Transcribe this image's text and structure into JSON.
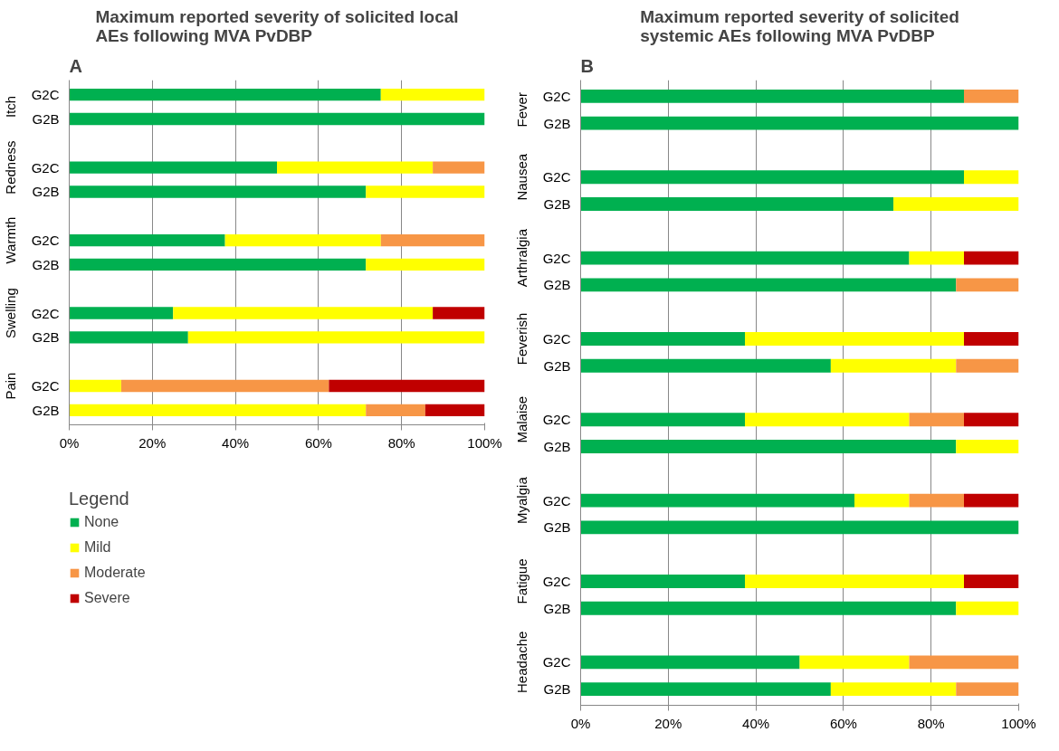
{
  "chart_data": [
    {
      "type": "bar",
      "orientation": "horizontal",
      "stacked": true,
      "title": "Maximum reported severity of solicited local AEs following MVA PvDBP",
      "annotations": [
        "A",
        "Itch",
        "Redness",
        "Warmth",
        "Swelling",
        "Pain"
      ],
      "categories": [
        "G2C",
        "G2B",
        null,
        "G2C",
        "G2B",
        null,
        "G2C",
        "G2B",
        null,
        "G2C",
        "G2B",
        null,
        "G2C",
        "G2B"
      ],
      "series": [
        {
          "name": "None",
          "color": "#00b050",
          "values": [
            75,
            100,
            null,
            50,
            71.4,
            null,
            37.5,
            71.4,
            null,
            25,
            28.6,
            null,
            0,
            0
          ]
        },
        {
          "name": "Mild",
          "color": "#ffff00",
          "values": [
            25,
            0,
            null,
            37.5,
            28.6,
            null,
            37.5,
            28.6,
            null,
            62.5,
            71.4,
            null,
            12.5,
            71.4
          ]
        },
        {
          "name": "Moderate",
          "color": "#f79646",
          "values": [
            0,
            0,
            null,
            12.5,
            0,
            null,
            25,
            0,
            null,
            0,
            0,
            null,
            50,
            14.3
          ]
        },
        {
          "name": "Severe",
          "color": "#c00000",
          "values": [
            0,
            0,
            null,
            0,
            0,
            null,
            0,
            0,
            null,
            12.5,
            0,
            null,
            37.5,
            14.3
          ]
        }
      ],
      "xlim": [
        0,
        100
      ],
      "xticks": [
        {
          "value": 0,
          "label": "0%"
        },
        {
          "value": 20,
          "label": "20%"
        },
        {
          "value": 40,
          "label": "40%"
        },
        {
          "value": 60,
          "label": "60%"
        },
        {
          "value": 80,
          "label": "80%"
        },
        {
          "value": 100,
          "label": "100%"
        }
      ],
      "grid": "x",
      "legend": "bottom",
      "legend_title": "Legend"
    },
    {
      "type": "bar",
      "orientation": "horizontal",
      "stacked": true,
      "title": "Maximum reported severity of solicited systemic AEs following MVA PvDBP",
      "annotations": [
        "B",
        "Fever",
        "Nausea",
        "Arthralgia",
        "Feverish",
        "Malaise",
        "Myalgia",
        "Fatigue",
        "Headache"
      ],
      "categories": [
        "G2C",
        "G2B",
        null,
        "G2C",
        "G2B",
        null,
        "G2C",
        "G2B",
        null,
        "G2C",
        "G2B",
        null,
        "G2C",
        "G2B",
        null,
        "G2C",
        "G2B",
        null,
        "G2C",
        "G2B",
        null,
        "G2C",
        "G2B"
      ],
      "series": [
        {
          "color": "#00b050",
          "values": [
            87.5,
            100,
            null,
            87.5,
            71.4,
            null,
            75,
            85.7,
            null,
            37.5,
            57.1,
            null,
            37.5,
            85.7,
            null,
            62.5,
            100,
            null,
            37.5,
            85.7,
            null,
            50,
            57.1
          ]
        },
        {
          "color": "#ffff00",
          "values": [
            0,
            0,
            null,
            12.5,
            28.6,
            null,
            12.5,
            0,
            null,
            50,
            28.6,
            null,
            37.5,
            14.3,
            null,
            12.5,
            0,
            null,
            50,
            14.3,
            null,
            25,
            28.6
          ]
        },
        {
          "color": "#f79646",
          "values": [
            12.5,
            0,
            null,
            0,
            0,
            null,
            0,
            14.3,
            null,
            0,
            14.3,
            null,
            12.5,
            0,
            null,
            12.5,
            0,
            null,
            0,
            0,
            null,
            25,
            14.3
          ]
        },
        {
          "color": "#c00000",
          "values": [
            0,
            0,
            null,
            0,
            0,
            null,
            12.5,
            0,
            null,
            12.5,
            0,
            null,
            12.5,
            0,
            null,
            12.5,
            0,
            null,
            12.5,
            0,
            null,
            0,
            0
          ]
        }
      ],
      "xlim": [
        0,
        100
      ],
      "xticks": [
        {
          "value": 0,
          "label": "0%"
        },
        {
          "value": 20,
          "label": "20%"
        },
        {
          "value": 40,
          "label": "40%"
        },
        {
          "value": 60,
          "label": "60%"
        },
        {
          "value": 80,
          "label": "80%"
        },
        {
          "value": 100,
          "label": "100%"
        }
      ],
      "grid": "x",
      "legend": false
    }
  ]
}
